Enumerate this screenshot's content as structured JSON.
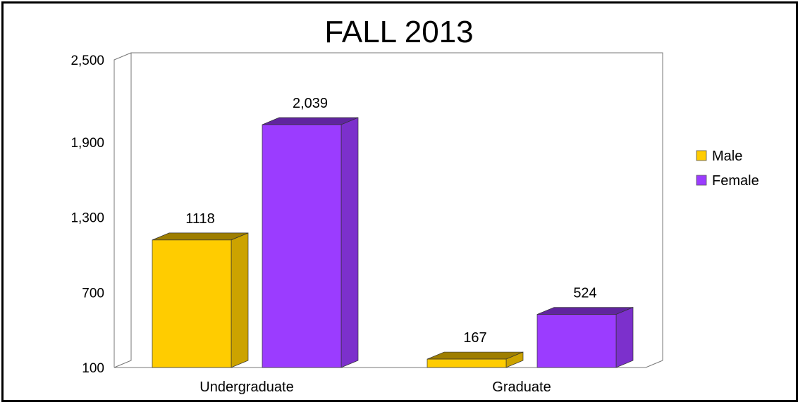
{
  "chart_data": {
    "type": "bar",
    "title": "FALL 2013",
    "categories": [
      "Undergraduate",
      "Graduate"
    ],
    "series": [
      {
        "name": "Male",
        "values": [
          1118,
          167
        ],
        "labels": [
          "1118",
          "167"
        ],
        "color": "#FFCC00"
      },
      {
        "name": "Female",
        "values": [
          2039,
          524
        ],
        "labels": [
          "2,039",
          "524"
        ],
        "color": "#9B3CFF"
      }
    ],
    "y_ticks": [
      "100",
      "700",
      "1,300",
      "1,900",
      "2,500"
    ],
    "y_tick_values": [
      100,
      700,
      1300,
      1900,
      2500
    ],
    "ylim": [
      100,
      2500
    ],
    "legend_position": "right",
    "grid": false,
    "style": "3d"
  }
}
